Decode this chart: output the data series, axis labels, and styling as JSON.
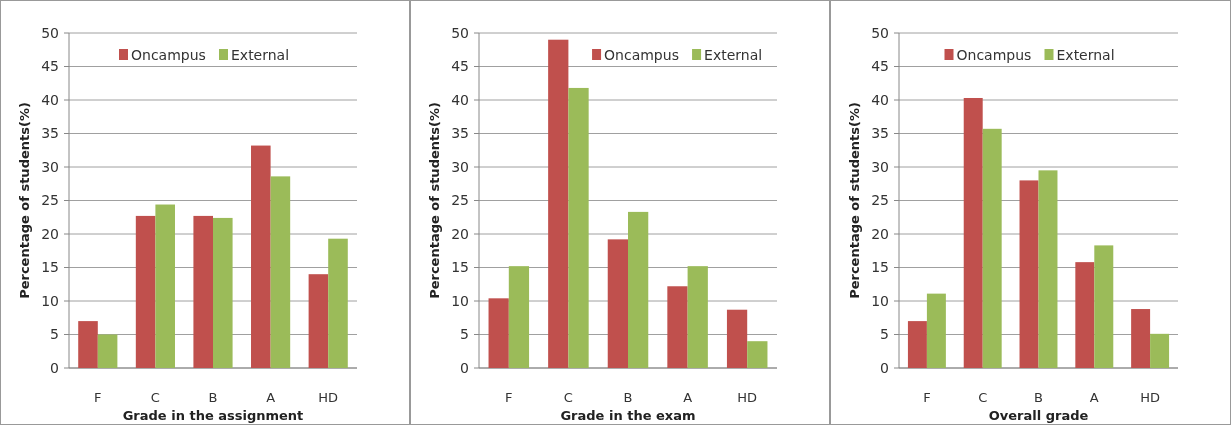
{
  "chart_data": [
    {
      "type": "bar",
      "categories": [
        "F",
        "C",
        "B",
        "A",
        "HD"
      ],
      "xlabel": "Grade in the assignment",
      "ylabel": "Percentage of students(%)",
      "ylim": [
        0,
        50
      ],
      "yticks": [
        0,
        5,
        10,
        15,
        20,
        25,
        30,
        35,
        40,
        45,
        50
      ],
      "grid": "y",
      "legend": "top",
      "series": [
        {
          "name": "Oncampus",
          "color": "#c0504d",
          "values": [
            7,
            22.7,
            22.7,
            33.2,
            14
          ]
        },
        {
          "name": "External",
          "color": "#9bbb59",
          "values": [
            5,
            24.4,
            22.4,
            28.6,
            19.3
          ]
        }
      ]
    },
    {
      "type": "bar",
      "categories": [
        "F",
        "C",
        "B",
        "A",
        "HD"
      ],
      "xlabel": "Grade in the exam",
      "ylabel": "Percentage of students(%)",
      "ylim": [
        0,
        50
      ],
      "yticks": [
        0,
        5,
        10,
        15,
        20,
        25,
        30,
        35,
        40,
        45,
        50
      ],
      "grid": "y",
      "legend": "top right",
      "series": [
        {
          "name": "Oncampus",
          "color": "#c0504d",
          "values": [
            10.4,
            49,
            19.2,
            12.2,
            8.7
          ]
        },
        {
          "name": "External",
          "color": "#9bbb59",
          "values": [
            15.2,
            41.8,
            23.3,
            15.2,
            4
          ]
        }
      ]
    },
    {
      "type": "bar",
      "categories": [
        "F",
        "C",
        "B",
        "A",
        "HD"
      ],
      "xlabel": "Overall grade",
      "ylabel": "Percentage of students(%)",
      "ylim": [
        0,
        50
      ],
      "yticks": [
        0,
        5,
        10,
        15,
        20,
        25,
        30,
        35,
        40,
        45,
        50
      ],
      "grid": "y",
      "legend": "top",
      "series": [
        {
          "name": "Oncampus",
          "color": "#c0504d",
          "values": [
            7,
            40.3,
            28,
            15.8,
            8.8
          ]
        },
        {
          "name": "External",
          "color": "#9bbb59",
          "values": [
            11.1,
            35.7,
            29.5,
            18.3,
            5.1
          ]
        }
      ]
    }
  ]
}
